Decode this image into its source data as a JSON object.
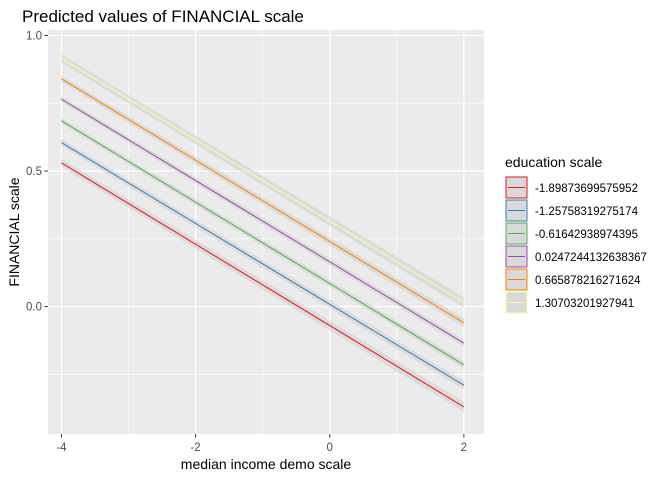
{
  "chart_data": {
    "type": "line",
    "title": "Predicted values of FINANCIAL scale",
    "xlabel": "median income demo scale",
    "ylabel": "FINANCIAL scale",
    "xlim": [
      -4.2,
      2.3
    ],
    "ylim": [
      -0.47,
      1.02
    ],
    "x_ticks": [
      -4,
      -2,
      0,
      2
    ],
    "x_tick_labels": [
      "-4",
      "-2",
      "0",
      "2"
    ],
    "y_ticks": [
      0.0,
      0.5,
      1.0
    ],
    "y_tick_labels": [
      "0.0",
      "0.5",
      "1.0"
    ],
    "grid": true,
    "legend": {
      "title": "education scale",
      "placement": "right"
    },
    "series": [
      {
        "name": "-1.89873699575952",
        "color": "#e41a1c",
        "x": [
          -4,
          2
        ],
        "y": [
          0.53,
          -0.37
        ],
        "ci": 0.015
      },
      {
        "name": "-1.25758319275174",
        "color": "#377eb8",
        "x": [
          -4,
          2
        ],
        "y": [
          0.605,
          -0.29
        ],
        "ci": 0.012
      },
      {
        "name": "-0.61642938974395",
        "color": "#4daf4a",
        "x": [
          -4,
          2
        ],
        "y": [
          0.685,
          -0.215
        ],
        "ci": 0.01
      },
      {
        "name": "0.0247244132638367",
        "color": "#984ea3",
        "x": [
          -4,
          2
        ],
        "y": [
          0.765,
          -0.135
        ],
        "ci": 0.01
      },
      {
        "name": "0.665878216271624",
        "color": "#ff7f00",
        "x": [
          -4,
          2
        ],
        "y": [
          0.84,
          -0.06
        ],
        "ci": 0.012
      },
      {
        "name": "1.30703201927941",
        "color": "#ffff99",
        "x": [
          -4,
          2
        ],
        "y": [
          0.915,
          0.015
        ],
        "ci": 0.015
      }
    ]
  }
}
